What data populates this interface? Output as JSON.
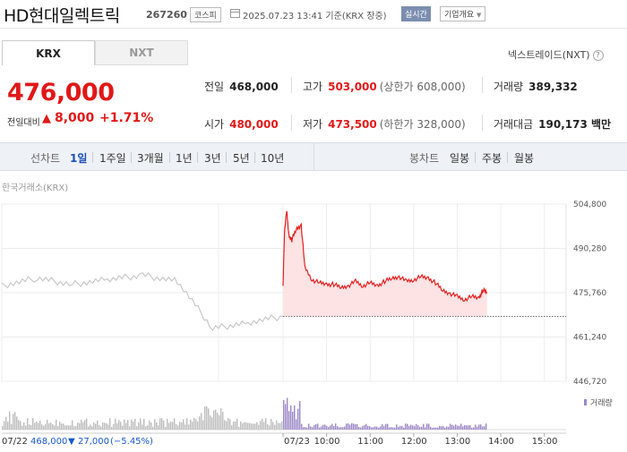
{
  "header": {
    "name": "HD현대일렉트릭",
    "code": "267260",
    "market": "코스피",
    "timestamp": "2025.07.23 13:41 기준(KRX 장중)",
    "realtime": "실시간",
    "company_info": "기업개요"
  },
  "tabs": {
    "krx": "KRX",
    "nxt": "NXT"
  },
  "nxt_trade": "넥스트레이드(NXT)",
  "quote": {
    "price": "476,000",
    "change_label": "전일대비",
    "change_abs": "8,000",
    "change_pct": "+1.71%"
  },
  "stats": {
    "prev_label": "전일",
    "prev": "468,000",
    "high_label": "고가",
    "high": "503,000",
    "upper_limit": "(상한가 608,000)",
    "volume_label": "거래량",
    "volume": "389,332",
    "open_label": "시가",
    "open": "480,000",
    "low_label": "저가",
    "low": "473,500",
    "lower_limit": "(하한가 328,000)",
    "amount_label": "거래대금",
    "amount": "190,173 백만"
  },
  "period": {
    "line_label": "선차트",
    "line_items": [
      "1일",
      "1주일",
      "3개월",
      "1년",
      "3년",
      "5년",
      "10년"
    ],
    "candle_label": "봉차트",
    "candle_items": [
      "일봉",
      "주봉",
      "월봉"
    ]
  },
  "source": "한국거래소(KRX)",
  "colors": {
    "up": "#e01818",
    "down": "#1858c8",
    "today_line": "#e02020",
    "prev_line": "#c8c8c8",
    "volume_today": "#9b87c8",
    "volume_prev": "#bdbdbd"
  },
  "chart_data": {
    "type": "line",
    "title": "",
    "xlabel": "",
    "ylabel": "",
    "y_ticks": [
      "504,800",
      "490,280",
      "475,760",
      "461,240",
      "446,720"
    ],
    "ylim": [
      446720,
      504800
    ],
    "x_ticks": [
      "07/23",
      "10:00",
      "11:00",
      "12:00",
      "13:00",
      "14:00",
      "15:00"
    ],
    "prev_close": 468000,
    "series": [
      {
        "x": [
          "09:00",
          "09:02",
          "09:05",
          "09:08",
          "09:12",
          "09:18",
          "09:25",
          "09:30",
          "09:40",
          "09:50",
          "10:00",
          "10:10",
          "10:20",
          "10:30",
          "10:40",
          "10:50",
          "11:00",
          "11:10",
          "11:20",
          "11:30",
          "11:40",
          "11:50",
          "12:00",
          "12:10",
          "12:20",
          "12:30",
          "12:40",
          "12:50",
          "13:00",
          "13:10",
          "13:20",
          "13:30",
          "13:35",
          "13:41"
        ],
        "values": [
          478000,
          496000,
          502500,
          494500,
          493000,
          496500,
          498000,
          484000,
          480000,
          479000,
          478500,
          478500,
          477500,
          478000,
          479500,
          478000,
          479000,
          478000,
          479500,
          480500,
          481000,
          479500,
          480000,
          481000,
          480500,
          479000,
          476500,
          475500,
          474500,
          473500,
          474500,
          474000,
          476500,
          476000
        ]
      },
      {
        "name": "전일",
        "x": [
          "07/22 09:00",
          "07/22 10:00",
          "07/22 11:00",
          "07/22 12:00",
          "07/22 13:00",
          "07/22 14:00",
          "07/22 14:30",
          "07/22 15:00",
          "07/22 15:30"
        ],
        "values": [
          478000,
          480500,
          478500,
          480000,
          481500,
          479500,
          464000,
          466000,
          468000
        ]
      }
    ],
    "volume_label": "거래량",
    "prev_footer": {
      "date": "07/22",
      "price": "468,000",
      "change": "27,000",
      "pct": "(−5.45%)"
    }
  }
}
